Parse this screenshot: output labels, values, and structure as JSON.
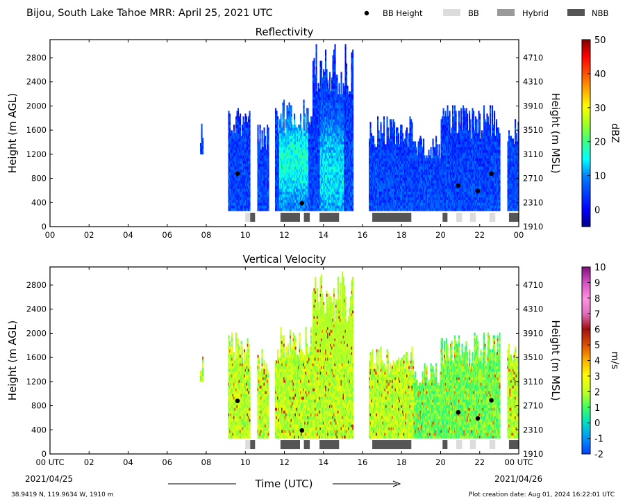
{
  "header": {
    "title": "Bijou, South Lake Tahoe MRR:  April 25, 2021 UTC",
    "legend": [
      {
        "label": "BB Height",
        "kind": "dot",
        "color": "#000000"
      },
      {
        "label": "BB",
        "kind": "box",
        "color": "#dcdcdc"
      },
      {
        "label": "Hybrid",
        "kind": "box",
        "color": "#999999"
      },
      {
        "label": "NBB",
        "kind": "box",
        "color": "#555555"
      }
    ]
  },
  "footer": {
    "xlabel": "Time (UTC)",
    "start_date": "2021/04/25",
    "end_date": "2021/04/26",
    "location": "38.9419 N, 119.9634 W, 1910 m",
    "creation": "Plot creation date: Aug 01, 2024 16:22:01 UTC"
  },
  "chart_data": [
    {
      "type": "heatmap",
      "title": "Reflectivity",
      "ylabel": "Height (m AGL)",
      "ylabel_right": "Height (m MSL)",
      "xlim": [
        0,
        24
      ],
      "ylim": [
        0,
        3100
      ],
      "x_ticks": [
        "00",
        "02",
        "04",
        "06",
        "08",
        "10",
        "12",
        "14",
        "16",
        "18",
        "20",
        "22",
        "00"
      ],
      "y_ticks": [
        0,
        400,
        800,
        1200,
        1600,
        2000,
        2400,
        2800
      ],
      "y_right_ticks": [
        1910,
        2310,
        2710,
        3110,
        3510,
        3910,
        4310,
        4710
      ],
      "colorbar": {
        "label": "dBZ",
        "ticks": [
          0,
          10,
          20,
          30,
          40,
          50
        ],
        "range": [
          -5,
          50
        ],
        "colormap": "jet"
      },
      "bright_band_points": [
        {
          "time_h": 9.6,
          "height_m": 880
        },
        {
          "time_h": 12.9,
          "height_m": 390
        },
        {
          "time_h": 20.9,
          "height_m": 680
        },
        {
          "time_h": 21.9,
          "height_m": 590
        },
        {
          "time_h": 22.6,
          "height_m": 880
        }
      ],
      "band_type_segments": [
        {
          "start_h": 10.0,
          "end_h": 10.25,
          "type": "BB"
        },
        {
          "start_h": 10.25,
          "end_h": 10.5,
          "type": "NBB"
        },
        {
          "start_h": 11.8,
          "end_h": 12.8,
          "type": "NBB"
        },
        {
          "start_h": 13.0,
          "end_h": 13.3,
          "type": "NBB"
        },
        {
          "start_h": 13.8,
          "end_h": 14.8,
          "type": "NBB"
        },
        {
          "start_h": 16.5,
          "end_h": 18.5,
          "type": "NBB"
        },
        {
          "start_h": 20.1,
          "end_h": 20.35,
          "type": "NBB"
        },
        {
          "start_h": 20.8,
          "end_h": 21.1,
          "type": "BB"
        },
        {
          "start_h": 21.5,
          "end_h": 21.8,
          "type": "BB"
        },
        {
          "start_h": 22.5,
          "end_h": 22.8,
          "type": "BB"
        },
        {
          "start_h": 23.5,
          "end_h": 24.0,
          "type": "NBB"
        }
      ]
    },
    {
      "type": "heatmap",
      "title": "Vertical Velocity",
      "ylabel": "Height (m AGL)",
      "ylabel_right": "Height (m MSL)",
      "xlim": [
        0,
        24
      ],
      "ylim": [
        0,
        3100
      ],
      "x_ticks": [
        "00 UTC",
        "02",
        "04",
        "06",
        "08",
        "10",
        "12",
        "14",
        "16",
        "18",
        "20",
        "22",
        "00 UTC"
      ],
      "y_ticks": [
        0,
        400,
        800,
        1200,
        1600,
        2000,
        2400,
        2800
      ],
      "y_right_ticks": [
        1910,
        2310,
        2710,
        3110,
        3510,
        3910,
        4310,
        4710
      ],
      "colorbar": {
        "label": "m/s",
        "ticks": [
          -2,
          -1,
          0,
          1,
          2,
          3,
          4,
          5,
          6,
          7,
          8,
          9,
          10
        ],
        "range": [
          -2,
          10
        ],
        "colormap": "velocity"
      },
      "bright_band_points": [
        {
          "time_h": 9.6,
          "height_m": 880
        },
        {
          "time_h": 12.9,
          "height_m": 390
        },
        {
          "time_h": 20.9,
          "height_m": 690
        },
        {
          "time_h": 21.9,
          "height_m": 590
        },
        {
          "time_h": 22.6,
          "height_m": 890
        }
      ],
      "band_type_segments": [
        {
          "start_h": 10.0,
          "end_h": 10.25,
          "type": "BB"
        },
        {
          "start_h": 10.25,
          "end_h": 10.5,
          "type": "NBB"
        },
        {
          "start_h": 11.8,
          "end_h": 12.8,
          "type": "NBB"
        },
        {
          "start_h": 13.0,
          "end_h": 13.3,
          "type": "NBB"
        },
        {
          "start_h": 13.8,
          "end_h": 14.8,
          "type": "NBB"
        },
        {
          "start_h": 16.5,
          "end_h": 18.5,
          "type": "NBB"
        },
        {
          "start_h": 20.1,
          "end_h": 20.35,
          "type": "NBB"
        },
        {
          "start_h": 20.8,
          "end_h": 21.1,
          "type": "BB"
        },
        {
          "start_h": 21.5,
          "end_h": 21.8,
          "type": "BB"
        },
        {
          "start_h": 22.5,
          "end_h": 22.8,
          "type": "BB"
        },
        {
          "start_h": 23.5,
          "end_h": 24.0,
          "type": "NBB"
        }
      ]
    }
  ]
}
